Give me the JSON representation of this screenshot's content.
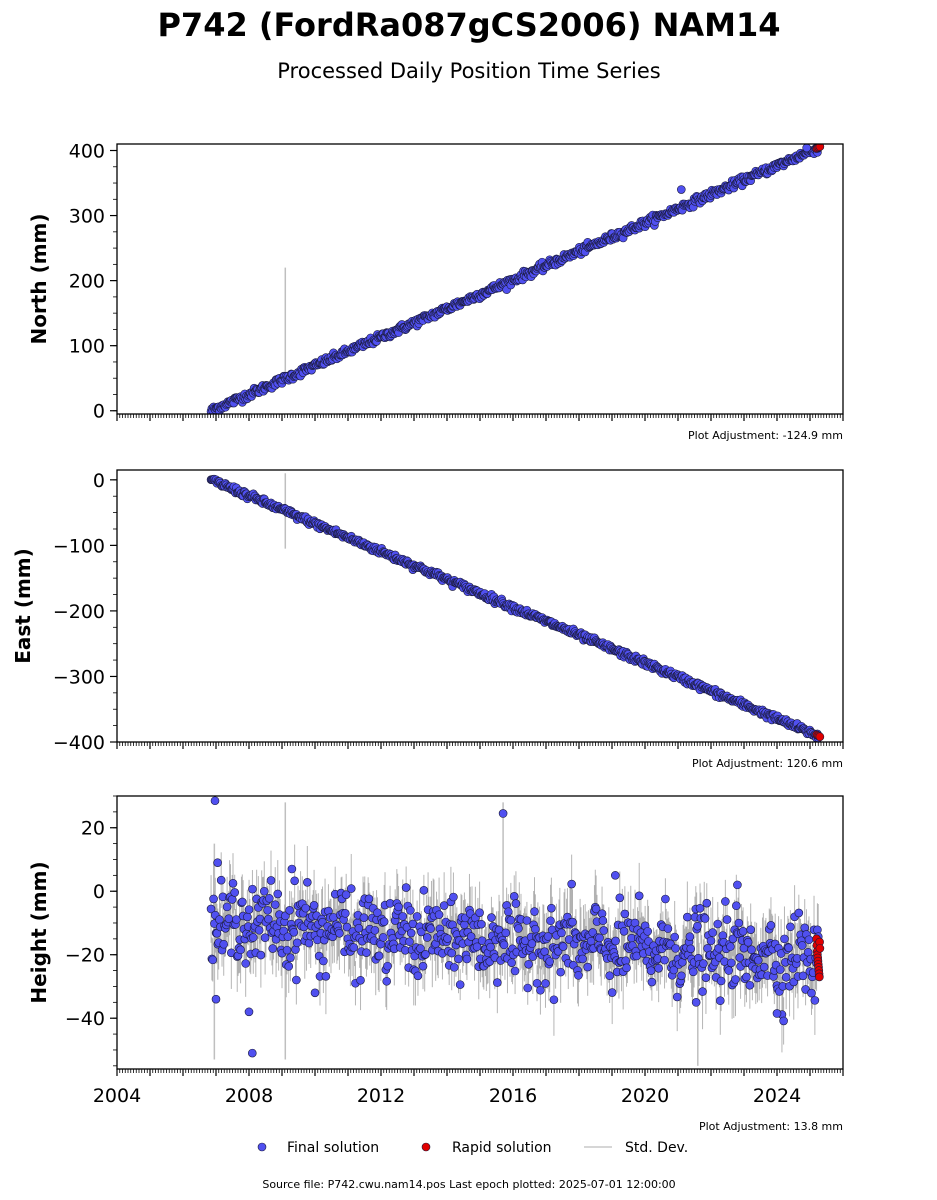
{
  "title": "P742 (FordRa087gCS2006) NAM14",
  "subtitle": "Processed Daily Position Time Series",
  "footer": "Source file: P742.cwu.nam14.pos  Last epoch plotted: 2025-07-01 12:00:00",
  "legend": {
    "final": "Final solution",
    "rapid": "Rapid solution",
    "std": "Std. Dev."
  },
  "colors": {
    "final": "#5050f0",
    "rapid": "#e00000",
    "std": "#b0b0b0",
    "marker_edge": "#1a1a3a"
  },
  "chart_data": [
    {
      "type": "scatter",
      "ylabel": "North (mm)",
      "adjustment": "Plot Adjustment: -124.9 mm",
      "xlim": [
        2004,
        2026
      ],
      "ylim": [
        -5,
        410
      ],
      "yticks": [
        0,
        100,
        200,
        300,
        400
      ],
      "trend": {
        "start": [
          2006.85,
          0
        ],
        "end": [
          2025.25,
          404
        ]
      },
      "noise_mm": 3,
      "spikes": [
        {
          "x": 2009.1,
          "low": 40,
          "high": 220
        }
      ],
      "outliers": [
        {
          "x": 2021.1,
          "y": 340
        },
        {
          "x": 2024.9,
          "y": 404
        }
      ],
      "rapid": {
        "start": 2025.2,
        "end": 2025.3,
        "values": [
          403,
          404,
          405,
          406
        ]
      },
      "grid": false
    },
    {
      "type": "scatter",
      "ylabel": "East (mm)",
      "adjustment": "Plot Adjustment: 120.6 mm",
      "xlim": [
        2004,
        2026
      ],
      "ylim": [
        -400,
        15
      ],
      "yticks": [
        0,
        -100,
        -200,
        -300,
        -400
      ],
      "trend": {
        "start": [
          2006.85,
          0
        ],
        "end": [
          2025.25,
          -391
        ]
      },
      "noise_mm": 2.5,
      "spikes": [
        {
          "x": 2009.1,
          "low": -105,
          "high": 10
        }
      ],
      "outliers": [],
      "rapid": {
        "start": 2025.2,
        "end": 2025.3,
        "values": [
          -389,
          -390,
          -391,
          -392
        ]
      },
      "grid": false
    },
    {
      "type": "scatter",
      "ylabel": "Height (mm)",
      "adjustment": "Plot Adjustment: 13.8 mm",
      "xlim": [
        2004,
        2026
      ],
      "ylim": [
        -56,
        30
      ],
      "yticks": [
        20,
        0,
        -20,
        -40
      ],
      "xticks": [
        2004,
        2008,
        2012,
        2016,
        2020,
        2024
      ],
      "trend": {
        "start": [
          2006.85,
          -11
        ],
        "end": [
          2025.25,
          -21
        ]
      },
      "noise_mm": 6,
      "spikes": [
        {
          "x": 2009.1,
          "low": -53,
          "high": 28
        },
        {
          "x": 2015.7,
          "low": -8,
          "high": 28
        },
        {
          "x": 2021.6,
          "low": -55,
          "high": -15
        },
        {
          "x": 2006.95,
          "low": -53,
          "high": 15
        }
      ],
      "outliers": [
        {
          "x": 2006.97,
          "y": 28.5
        },
        {
          "x": 2015.7,
          "y": 24.5
        },
        {
          "x": 2008.1,
          "y": -51
        },
        {
          "x": 2008.0,
          "y": -38
        },
        {
          "x": 2021.55,
          "y": -35
        },
        {
          "x": 2024.0,
          "y": -38.5
        },
        {
          "x": 2019.1,
          "y": 5
        },
        {
          "x": 2009.3,
          "y": 7
        },
        {
          "x": 2007.05,
          "y": 9
        },
        {
          "x": 2010.0,
          "y": -32
        },
        {
          "x": 2007.0,
          "y": -34
        },
        {
          "x": 2022.8,
          "y": 2
        }
      ],
      "rapid": {
        "start": 2025.2,
        "end": 2025.3,
        "values": [
          -15,
          -17,
          -19,
          -20,
          -21,
          -22,
          -23,
          -24,
          -25,
          -26,
          -27,
          -16,
          -18
        ]
      },
      "grid": false
    }
  ]
}
